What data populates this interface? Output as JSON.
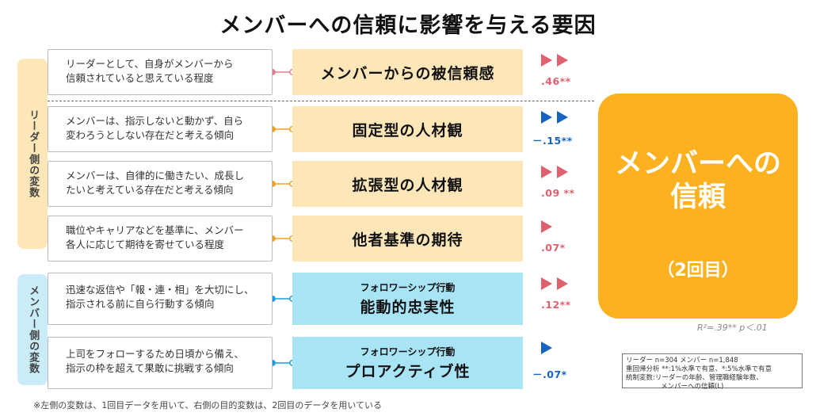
{
  "title": "メンバーへの信頼に影響を与える要因",
  "side_labels": {
    "leader": "リーダー側の変数",
    "member": "メンバー側の変数"
  },
  "rows": [
    {
      "desc": [
        "リーダーとして、自身がメンバーから",
        "信頼されていると思えている程度"
      ],
      "sub": "",
      "factor": "メンバーからの被信頼感",
      "coef": ".46**",
      "sign": "positive",
      "arrows": 2
    },
    {
      "desc": [
        "メンバーは、指示しないと動かず、自ら",
        "変わろうとしない存在だと考える傾向"
      ],
      "sub": "",
      "factor": "固定型の人材観",
      "coef": "－.15**",
      "sign": "negative",
      "arrows": 2
    },
    {
      "desc": [
        "メンバーは、自律的に働きたい、成長し",
        "たいと考えている存在だと考える傾向"
      ],
      "sub": "",
      "factor": "拡張型の人材観",
      "coef": ".09 **",
      "sign": "positive",
      "arrows": 2
    },
    {
      "desc": [
        "職位やキャリアなどを基準に、メンバー",
        "各人に応じて期待を寄せている程度"
      ],
      "sub": "",
      "factor": "他者基準の期待",
      "coef": ".07*",
      "sign": "positive",
      "arrows": 1
    },
    {
      "desc": [
        "迅速な返信や「報・連・相」を大切にし、",
        "指示される前に自ら行動する傾向"
      ],
      "sub": "フォロワーシップ行動",
      "factor": "能動的忠実性",
      "coef": ".12**",
      "sign": "positive",
      "arrows": 2
    },
    {
      "desc": [
        "上司をフォローするため日頃から備え、",
        "指示の枠を超えて果敢に挑戦する傾向"
      ],
      "sub": "フォロワーシップ行動",
      "factor": "プロアクティブ性",
      "coef": "－.07*",
      "sign": "negative",
      "arrows": 1
    }
  ],
  "target": {
    "line1": "メンバーへの",
    "line2": "信頼",
    "line3": "（2回目）"
  },
  "r2": "R²=.39** p＜.01",
  "note": [
    "リーダー n=304 メンバー n=1,848",
    "重回帰分析 **:1%水準で有意、*:5%水準で有意",
    "統制変数:リーダーの年齢、管理職経験年数、",
    "メンバーへの信頼(L)"
  ],
  "footnote": "※左側の変数は、1回目データを用いて、右側の目的変数は、2回目のデータを用いている",
  "colors": {
    "positive": "#e0606e",
    "negative": "#1565c0",
    "orange_box": "#fde7b9",
    "blue_box": "#a8e4f6",
    "target": "#fcb121",
    "pink_line": "#e27e8e",
    "orange_line": "#f3a21d",
    "blue_line": "#1d9be0"
  }
}
